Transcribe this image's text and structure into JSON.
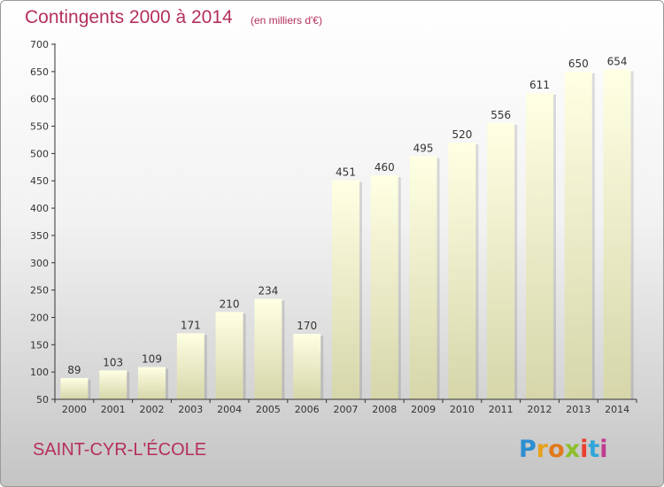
{
  "header": {
    "title": "Contingents 2000 à 2014",
    "subtitle": "(en milliers d'€)"
  },
  "footer": {
    "commune": "SAINT-CYR-L'ÉCOLE",
    "logo_text": "Proxiti",
    "logo_letters": [
      {
        "char": "P",
        "color": "#2d8fd0"
      },
      {
        "char": "r",
        "color": "#e6a21b"
      },
      {
        "char": "o",
        "color": "#e07a1c"
      },
      {
        "char": "x",
        "color": "#8cbf2a"
      },
      {
        "char": "i",
        "color": "#e9402f"
      },
      {
        "char": "t",
        "color": "#35a6d9"
      },
      {
        "char": "i",
        "color": "#c03a8e"
      }
    ]
  },
  "colors": {
    "accent": "#b5305c",
    "bar_top": "#ffffe4",
    "bar_bottom": "#d6d6aa"
  },
  "chart_data": {
    "type": "bar",
    "title": "Contingents 2000 à 2014",
    "subtitle": "(en milliers d'€)",
    "categories": [
      "2000",
      "2001",
      "2002",
      "2003",
      "2004",
      "2005",
      "2006",
      "2007",
      "2008",
      "2009",
      "2010",
      "2011",
      "2012",
      "2013",
      "2014"
    ],
    "values": [
      89,
      103,
      109,
      171,
      210,
      234,
      170,
      451,
      460,
      495,
      520,
      556,
      611,
      650,
      654
    ],
    "ylim": [
      50,
      700
    ],
    "yticks": [
      50,
      100,
      150,
      200,
      250,
      300,
      350,
      400,
      450,
      500,
      550,
      600,
      650,
      700
    ],
    "grid": false,
    "data_labels": true
  }
}
